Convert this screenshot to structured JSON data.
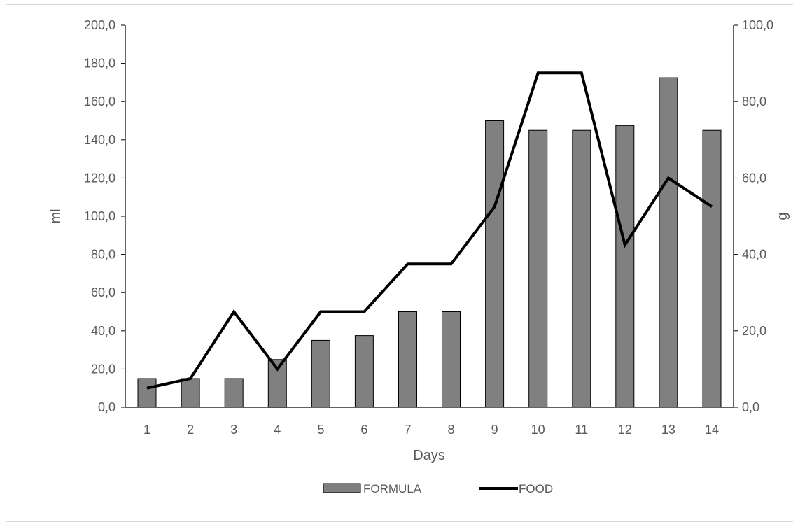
{
  "chart_data": {
    "type": "bar",
    "categories": [
      "1",
      "2",
      "3",
      "4",
      "5",
      "6",
      "7",
      "8",
      "9",
      "10",
      "11",
      "12",
      "13",
      "14"
    ],
    "series": [
      {
        "name": "FORMULA",
        "type": "bar",
        "axis": "left",
        "color": "#808080",
        "values": [
          15,
          15,
          15,
          25,
          35,
          37.5,
          50,
          50,
          150,
          145,
          145,
          147.5,
          172.5,
          145
        ]
      },
      {
        "name": "FOOD",
        "type": "line",
        "axis": "right",
        "color": "#000000",
        "values": [
          5,
          7.5,
          25,
          10,
          25,
          25,
          37.5,
          37.5,
          52.5,
          87.5,
          87.5,
          42.5,
          60,
          52.5
        ]
      }
    ],
    "xlabel": "Days",
    "ylabel": "ml",
    "y2label": "g",
    "ylim": [
      0,
      200
    ],
    "y2lim": [
      0,
      100
    ],
    "yticks": [
      "0,0",
      "20,0",
      "40,0",
      "60,0",
      "80,0",
      "100,0",
      "120,0",
      "140,0",
      "160,0",
      "180,0",
      "200,0"
    ],
    "y2ticks": [
      "0,0",
      "20,0",
      "40,0",
      "60,0",
      "80,0",
      "100,0"
    ],
    "grid": false,
    "legend": "bottom"
  }
}
